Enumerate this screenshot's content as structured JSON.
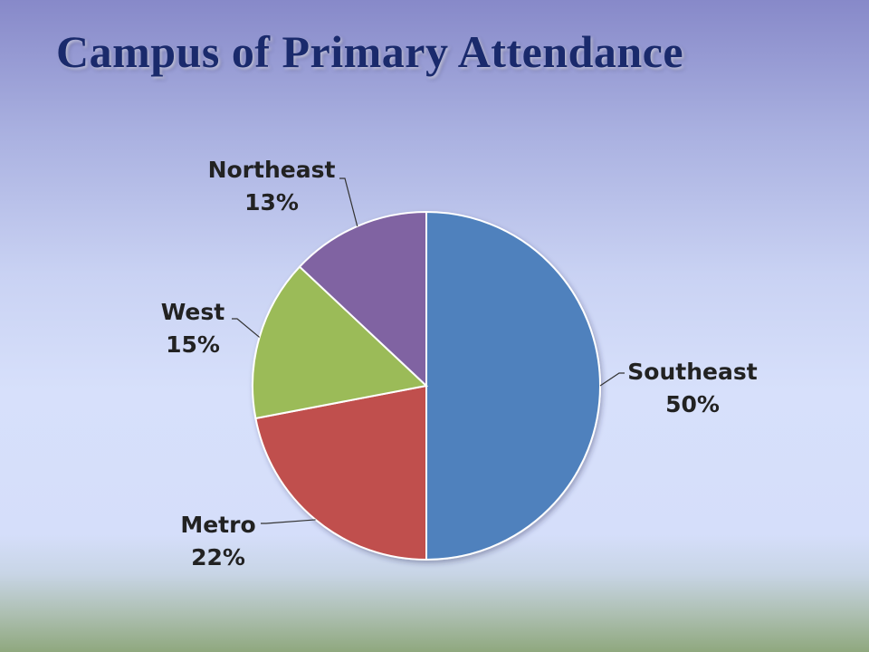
{
  "chart_data": {
    "type": "pie",
    "title": "Campus of Primary Attendance",
    "slices": [
      {
        "label": "Southeast",
        "value": 50,
        "display": "50%",
        "color": "#4f81bd"
      },
      {
        "label": "Metro",
        "value": 22,
        "display": "22%",
        "color": "#c0504d"
      },
      {
        "label": "West",
        "value": 15,
        "display": "15%",
        "color": "#9bbb59"
      },
      {
        "label": "Northeast",
        "value": 13,
        "display": "13%",
        "color": "#8064a2"
      }
    ],
    "start": "12 o'clock",
    "direction": "clockwise",
    "legend": "none"
  }
}
